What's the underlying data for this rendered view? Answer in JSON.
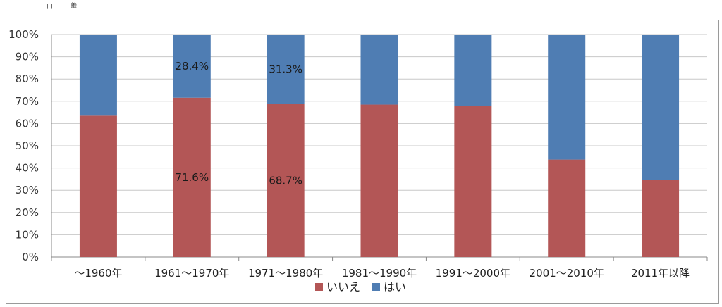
{
  "corner_marks": [
    "口",
    "譱"
  ],
  "chart_data": {
    "type": "bar",
    "stacked": true,
    "categories": [
      "～1960年",
      "1961～1970年",
      "1971～1980年",
      "1981～1990年",
      "1991～2000年",
      "2001～2010年",
      "2011年以降"
    ],
    "series": [
      {
        "name": "いいえ",
        "color": "#b35656",
        "values": [
          63.5,
          71.6,
          68.7,
          68.5,
          68.0,
          43.8,
          34.5
        ]
      },
      {
        "name": "はい",
        "color": "#4f7db3",
        "values": [
          36.5,
          28.4,
          31.3,
          31.5,
          32.0,
          56.2,
          65.5
        ]
      }
    ],
    "data_labels": [
      {
        "category_index": 1,
        "series_index": 0,
        "text": "71.6%"
      },
      {
        "category_index": 1,
        "series_index": 1,
        "text": "28.4%"
      },
      {
        "category_index": 2,
        "series_index": 0,
        "text": "68.7%"
      },
      {
        "category_index": 2,
        "series_index": 1,
        "text": "31.3%"
      }
    ],
    "yticks": [
      "0%",
      "10%",
      "20%",
      "30%",
      "40%",
      "50%",
      "60%",
      "70%",
      "80%",
      "90%",
      "100%"
    ],
    "ylim": [
      0,
      100
    ],
    "grid": true,
    "legend": "bottom",
    "title": "",
    "xlabel": "",
    "ylabel": ""
  }
}
